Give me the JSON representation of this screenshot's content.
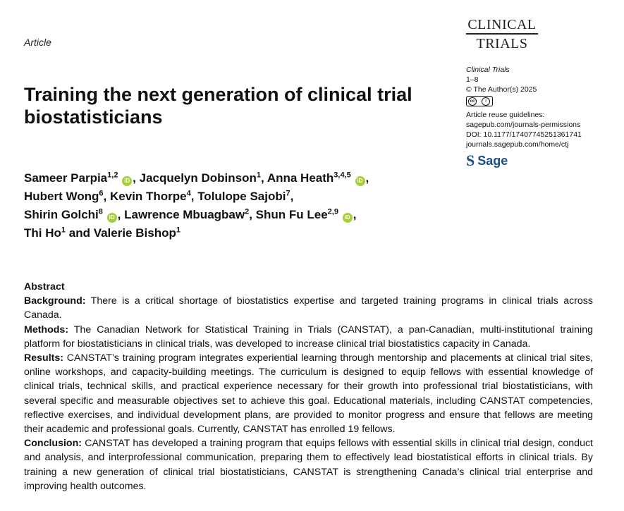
{
  "journal_logo": {
    "line1": "CLINICAL",
    "line2": "TRIALS"
  },
  "article_type": "Article",
  "title": "Training the next generation of clinical trial biostatisticians",
  "meta": {
    "journal_name": "Clinical Trials",
    "pages": "1–8",
    "copyright": "© The Author(s) 2025",
    "license_left": "cc",
    "license_right": "i",
    "reuse_label": "Article reuse guidelines:",
    "permissions_link": "sagepub.com/journals-permissions",
    "doi": "DOI: 10.1177/17407745251361741",
    "journal_link": "journals.sagepub.com/home/ctj",
    "publisher_s": "S",
    "publisher_name": "Sage"
  },
  "authors": [
    {
      "name": "Sameer Parpia",
      "aff": "1,2",
      "orcid": true,
      "sep": ", "
    },
    {
      "name": "Jacquelyn Dobinson",
      "aff": "1",
      "orcid": false,
      "sep": ", "
    },
    {
      "name": "Anna Heath",
      "aff": "3,4,5",
      "orcid": true,
      "sep": ", "
    },
    {
      "name": "Hubert Wong",
      "aff": "6",
      "orcid": false,
      "sep": ", "
    },
    {
      "name": "Kevin Thorpe",
      "aff": "4",
      "orcid": false,
      "sep": ", "
    },
    {
      "name": "Tolulope Sajobi",
      "aff": "7",
      "orcid": false,
      "sep": ", "
    },
    {
      "name": "Shirin Golchi",
      "aff": "8",
      "orcid": true,
      "sep": ", "
    },
    {
      "name": "Lawrence Mbuagbaw",
      "aff": "2",
      "orcid": false,
      "sep": ", "
    },
    {
      "name": "Shun Fu Lee",
      "aff": "2,9",
      "orcid": true,
      "sep": ", "
    },
    {
      "name": "Thi Ho",
      "aff": "1",
      "orcid": false,
      "sep": " and "
    },
    {
      "name": "Valerie Bishop",
      "aff": "1",
      "orcid": false,
      "sep": ""
    }
  ],
  "orcid_label": "iD",
  "abstract": {
    "heading": "Abstract",
    "sections": [
      {
        "label": "Background:",
        "text": "There is a critical shortage of biostatistics expertise and targeted training programs in clinical trials across Canada."
      },
      {
        "label": "Methods:",
        "text": "The Canadian Network for Statistical Training in Trials (CANSTAT), a pan-Canadian, multi-institutional training platform for biostatisticians in clinical trials, was developed to increase clinical trial biostatistics capacity in Canada."
      },
      {
        "label": "Results:",
        "text": "CANSTAT’s training program integrates experiential learning through mentorship and placements at clinical trial sites, online workshops, and capacity-building meetings. The curriculum is designed to equip fellows with essential knowledge of clinical trials, technical skills, and practical experience necessary for their growth into professional trial biostatisticians, with several specific and measurable objectives set to achieve this goal. Educational materials, including CANSTAT competencies, reflective exercises, and individual development plans, are provided to monitor progress and ensure that fellows are meeting their academic and professional goals. Currently, CANSTAT has enrolled 19 fellows."
      },
      {
        "label": "Conclusion:",
        "text": "CANSTAT has developed a training program that equips fellows with essential skills in clinical trial design, conduct and analysis, and interprofessional communication, preparing them to effectively lead biostatistical efforts in clinical trials. By training a new generation of clinical trial biostatisticians, CANSTAT is strengthening Canada’s clinical trial enterprise and improving health outcomes."
      }
    ]
  }
}
